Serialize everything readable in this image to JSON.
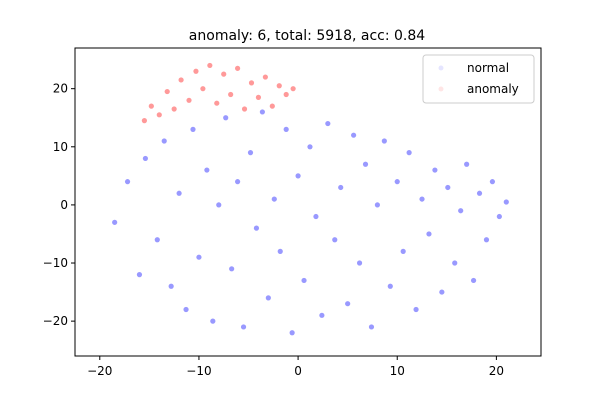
{
  "chart_data": {
    "type": "scatter",
    "title": "anomaly: 6, total: 5918, acc: 0.84",
    "xlabel": "",
    "ylabel": "",
    "xlim": [
      -22.5,
      24.5
    ],
    "ylim": [
      -26,
      27
    ],
    "xticks": [
      -20,
      -10,
      0,
      10,
      20
    ],
    "yticks": [
      -20,
      -10,
      0,
      10,
      20
    ],
    "xtick_labels": [
      "−20",
      "−10",
      "0",
      "10",
      "20"
    ],
    "ytick_labels": [
      "−20",
      "−10",
      "0",
      "10",
      "20"
    ],
    "grid": false,
    "legend_position": "top-right",
    "series": [
      {
        "name": "normal",
        "color": "#0000ff",
        "alpha": 0.1,
        "region": {
          "center": [
            2,
            -2
          ],
          "x_range": [
            -19.5,
            22
          ],
          "y_range": [
            -23,
            17
          ]
        },
        "x": [
          -18.5,
          -17.2,
          -16.0,
          -15.4,
          -14.2,
          -13.5,
          -12.8,
          -12.0,
          -11.3,
          -10.6,
          -10.0,
          -9.2,
          -8.6,
          -8.0,
          -7.3,
          -6.7,
          -6.1,
          -5.5,
          -4.8,
          -4.2,
          -3.6,
          -3.0,
          -2.4,
          -1.8,
          -1.2,
          -0.6,
          0.0,
          0.6,
          1.2,
          1.8,
          2.4,
          3.0,
          3.7,
          4.3,
          5.0,
          5.6,
          6.2,
          6.8,
          7.4,
          8.0,
          8.7,
          9.3,
          10.0,
          10.6,
          11.2,
          11.9,
          12.5,
          13.2,
          13.8,
          14.5,
          15.1,
          15.8,
          16.4,
          17.0,
          17.7,
          18.3,
          19.0,
          19.6,
          20.3,
          21.0
        ],
        "y": [
          -3.0,
          4.0,
          -12.0,
          8.0,
          -6.0,
          11.0,
          -14.0,
          2.0,
          -18.0,
          13.0,
          -9.0,
          6.0,
          -20.0,
          0.0,
          15.0,
          -11.0,
          4.0,
          -21.0,
          9.0,
          -4.0,
          16.0,
          -16.0,
          1.0,
          -8.0,
          13.0,
          -22.0,
          5.0,
          -13.0,
          10.0,
          -2.0,
          -19.0,
          14.0,
          -6.0,
          3.0,
          -17.0,
          12.0,
          -10.0,
          7.0,
          -21.0,
          0.0,
          11.0,
          -14.0,
          4.0,
          -8.0,
          9.0,
          -18.0,
          1.0,
          -5.0,
          6.0,
          -15.0,
          3.0,
          -10.0,
          -1.0,
          7.0,
          -13.0,
          2.0,
          -6.0,
          4.0,
          -2.0,
          0.5
        ]
      },
      {
        "name": "anomaly",
        "color": "#ff0000",
        "alpha": 0.1,
        "region": {
          "center": [
            -8,
            19.5
          ],
          "x_range": [
            -16,
            0
          ],
          "y_range": [
            13,
            25
          ]
        },
        "x": [
          -15.5,
          -14.8,
          -14.0,
          -13.2,
          -12.5,
          -11.8,
          -11.0,
          -10.3,
          -9.6,
          -8.9,
          -8.2,
          -7.5,
          -6.8,
          -6.1,
          -5.4,
          -4.7,
          -4.0,
          -3.3,
          -2.6,
          -1.9,
          -1.2,
          -0.5
        ],
        "y": [
          14.5,
          17.0,
          15.5,
          19.5,
          16.5,
          21.5,
          18.0,
          23.0,
          20.0,
          24.0,
          17.5,
          22.5,
          19.0,
          23.5,
          16.5,
          21.0,
          18.5,
          22.0,
          17.0,
          20.5,
          19.0,
          20.0
        ]
      }
    ]
  }
}
